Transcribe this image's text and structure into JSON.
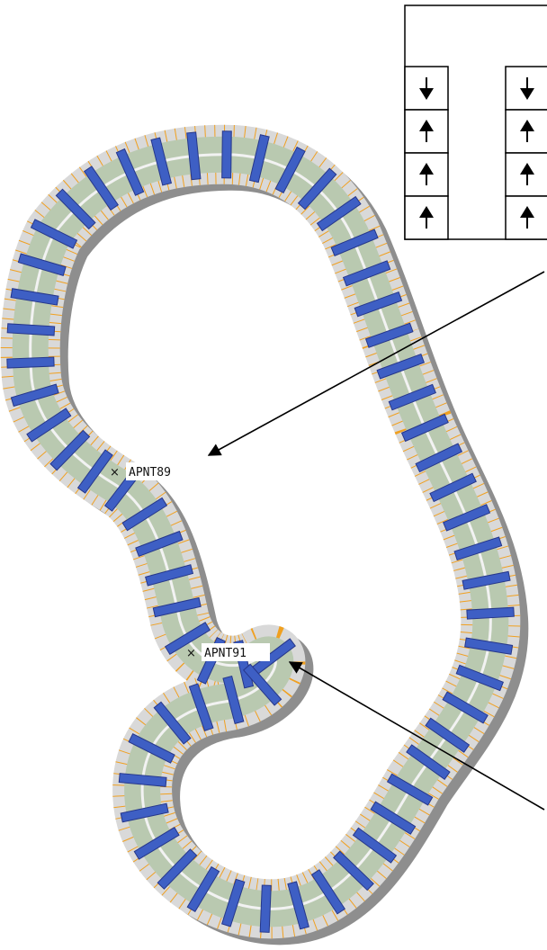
{
  "annotations": [
    {
      "id": "apnt89",
      "text": "APNT89"
    },
    {
      "id": "apnt91",
      "text": "APNT91"
    }
  ],
  "legend": {
    "columns": [
      {
        "cells": [
          "arrow-down-icon",
          "arrow-up-icon",
          "arrow-up-icon",
          "arrow-up-icon"
        ]
      },
      {
        "cells": [
          "arrow-down-icon",
          "arrow-up-icon",
          "arrow-up-icon",
          "arrow-up-icon"
        ]
      }
    ]
  },
  "colors": {
    "tube_fill": "#b9c9b0",
    "tube_shade": "#6f7a6a",
    "outer_band": "#d9d9d9",
    "outer_band_dark": "#8e8e8e",
    "block": "#3e5fc4",
    "block_dark": "#26378a",
    "tick": "#f0a020",
    "rail": "#f2f2f2"
  }
}
